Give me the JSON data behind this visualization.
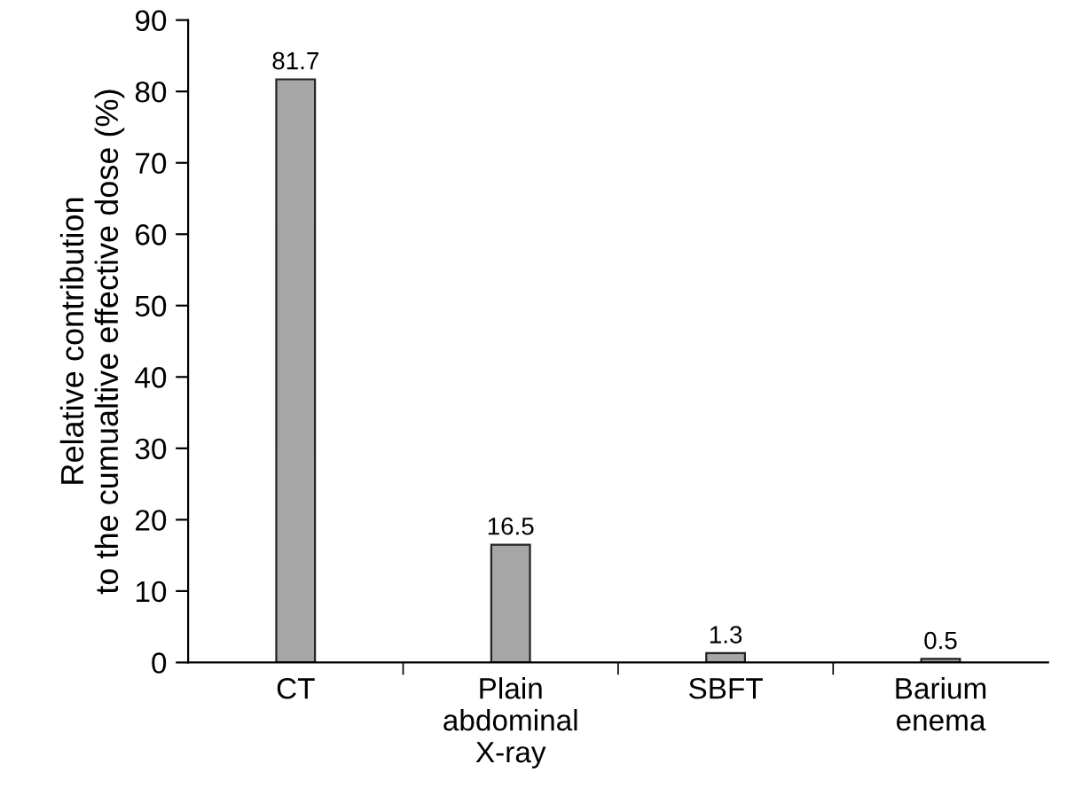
{
  "chart_data": {
    "type": "bar",
    "ylabel": "Relative contribution\nto the cumualtive effective dose (%)",
    "categories": [
      "CT",
      "Plain\nabdominal\nX-ray",
      "SBFT",
      "Barium\nenema"
    ],
    "values": [
      81.7,
      16.5,
      1.3,
      0.5
    ],
    "color": "#a6a6a6",
    "ylim": [
      0,
      90
    ],
    "yticks": [
      0,
      10,
      20,
      30,
      40,
      50,
      60,
      70,
      80,
      90
    ],
    "data_labels": true,
    "grid": false,
    "legend": false
  }
}
